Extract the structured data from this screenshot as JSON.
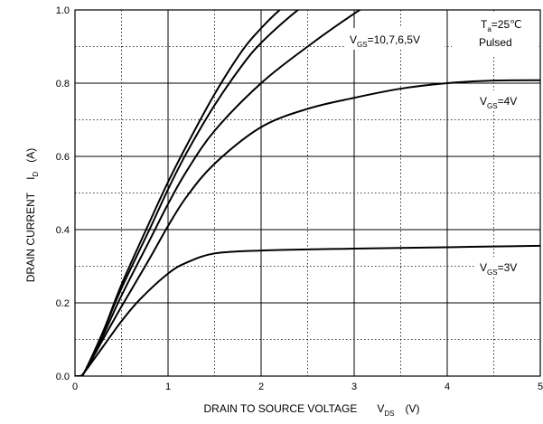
{
  "chart_data": {
    "type": "line",
    "title": "",
    "xlabel": "DRAIN TO SOURCE VOLTAGE",
    "xlabel_symbol": "V",
    "xlabel_symbol_sub": "DS",
    "xlabel_unit": "(V)",
    "ylabel": "DRAIN CURRENT",
    "ylabel_symbol": "I",
    "ylabel_symbol_sub": "D",
    "ylabel_unit": "(A)",
    "xlim": [
      0,
      5
    ],
    "ylim": [
      0,
      1.0
    ],
    "x_ticks": [
      0,
      1,
      2,
      3,
      4,
      5
    ],
    "x_tick_labels": [
      "0",
      "1",
      "2",
      "3",
      "4",
      "5"
    ],
    "y_ticks": [
      0,
      0.2,
      0.4,
      0.6,
      0.8,
      1.0
    ],
    "y_tick_labels": [
      "0.0",
      "0.2",
      "0.4",
      "0.6",
      "0.8",
      "1.0"
    ],
    "grid": {
      "major": "solid",
      "minor": "dotted",
      "x_minor_step": 0.5,
      "y_minor_step": 0.1
    },
    "series": [
      {
        "x": [
          0,
          0.05,
          0.1,
          0.3,
          0.5,
          0.8,
          1.0,
          1.2,
          1.5,
          1.8,
          2.0,
          2.2,
          2.4
        ],
        "y": [
          0,
          0.0,
          0.01,
          0.12,
          0.25,
          0.42,
          0.53,
          0.63,
          0.77,
          0.89,
          0.95,
          1.0,
          1.04
        ]
      },
      {
        "x": [
          0,
          0.05,
          0.1,
          0.3,
          0.5,
          0.8,
          1.0,
          1.2,
          1.5,
          1.8,
          2.0,
          2.3,
          2.6
        ],
        "y": [
          0,
          0.0,
          0.01,
          0.12,
          0.24,
          0.4,
          0.51,
          0.61,
          0.74,
          0.85,
          0.91,
          0.98,
          1.04
        ]
      },
      {
        "x": [
          0,
          0.05,
          0.1,
          0.3,
          0.5,
          0.8,
          1.0,
          1.2,
          1.5,
          2.0,
          2.5,
          3.0,
          3.2
        ],
        "y": [
          0,
          0.0,
          0.01,
          0.11,
          0.22,
          0.37,
          0.47,
          0.56,
          0.67,
          0.8,
          0.9,
          0.99,
          1.02
        ]
      },
      {
        "x": [
          0,
          0.05,
          0.1,
          0.3,
          0.5,
          0.8,
          1.0,
          1.2,
          1.5,
          2.0,
          2.5,
          3.0,
          3.5,
          4.0,
          4.5,
          5.0
        ],
        "y": [
          0,
          0.0,
          0.01,
          0.1,
          0.19,
          0.32,
          0.41,
          0.49,
          0.58,
          0.68,
          0.73,
          0.76,
          0.785,
          0.8,
          0.807,
          0.808
        ]
      },
      {
        "x": [
          0,
          0.05,
          0.1,
          0.3,
          0.5,
          0.7,
          1.0,
          1.2,
          1.5,
          2.0,
          2.5,
          3.0,
          3.5,
          4.0,
          4.5,
          5.0
        ],
        "y": [
          0,
          0.0,
          0.01,
          0.08,
          0.15,
          0.21,
          0.28,
          0.31,
          0.335,
          0.343,
          0.346,
          0.348,
          0.35,
          0.352,
          0.354,
          0.356
        ]
      }
    ],
    "annotations": [
      {
        "id": "vgs-high",
        "sym": "V",
        "sub": "GS",
        "rest": "=10,7,6,5V"
      },
      {
        "id": "vgs-4",
        "sym": "V",
        "sub": "GS",
        "rest": "=4V"
      },
      {
        "id": "vgs-3",
        "sym": "V",
        "sub": "GS",
        "rest": "=3V"
      },
      {
        "id": "ta",
        "sym": "T",
        "sub": "a",
        "rest": "=25℃"
      },
      {
        "id": "pulsed",
        "text": "Pulsed"
      }
    ]
  }
}
